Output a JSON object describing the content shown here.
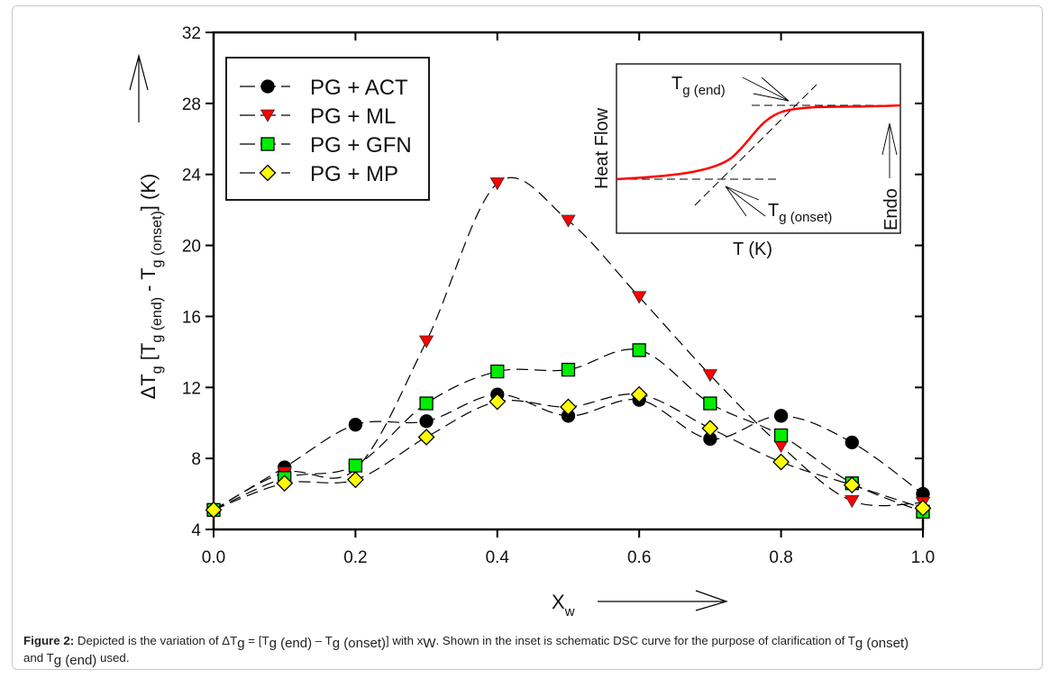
{
  "chart_data": {
    "type": "line",
    "title": "",
    "xlabel": "X",
    "xlabel_sub": "w",
    "ylabel_parts": [
      "ΔT",
      "g",
      " [T",
      "g (end)",
      " - T",
      "g (onset)",
      "] (K)"
    ],
    "xlim": [
      0.0,
      1.0
    ],
    "ylim": [
      4,
      32
    ],
    "xticks": [
      0.0,
      0.2,
      0.4,
      0.6,
      0.8,
      1.0
    ],
    "xtick_labels": [
      "0.0",
      "0.2",
      "0.4",
      "0.6",
      "0.8",
      "1.0"
    ],
    "yticks": [
      4,
      8,
      12,
      16,
      20,
      24,
      28,
      32
    ],
    "ytick_labels": [
      "4",
      "8",
      "12",
      "16",
      "20",
      "24",
      "28",
      "32"
    ],
    "grid": false,
    "legend_position": "top-left",
    "x": [
      0.0,
      0.1,
      0.2,
      0.3,
      0.4,
      0.5,
      0.6,
      0.7,
      0.8,
      0.9,
      1.0
    ],
    "series": [
      {
        "name": "PG + ACT",
        "marker": "circle",
        "color": "#000000",
        "values": [
          5.1,
          7.5,
          9.9,
          10.1,
          11.6,
          10.4,
          11.3,
          9.1,
          10.4,
          8.9,
          6.0
        ]
      },
      {
        "name": "PG + ML",
        "marker": "triangle-down",
        "color": "#ff0000",
        "values": [
          5.1,
          7.2,
          7.4,
          14.6,
          23.5,
          21.4,
          17.1,
          12.7,
          8.7,
          5.6,
          5.5
        ]
      },
      {
        "name": "PG + GFN",
        "marker": "square",
        "color": "#00ee00",
        "values": [
          5.1,
          6.9,
          7.6,
          11.1,
          12.9,
          13.0,
          14.1,
          11.1,
          9.3,
          6.6,
          5.0
        ]
      },
      {
        "name": "PG + MP",
        "marker": "diamond",
        "color": "#ffff00",
        "values": [
          5.1,
          6.6,
          6.8,
          9.2,
          11.2,
          10.9,
          11.6,
          9.7,
          7.8,
          6.5,
          5.2
        ]
      }
    ],
    "inset": {
      "ylabel": "Heat Flow",
      "xlabel": "T (K)",
      "tg_end_label": "T",
      "tg_end_sub": "g (end)",
      "tg_onset_label": "T",
      "tg_onset_sub": "g (onset)",
      "endo_label": "Endo",
      "curve_color": "#ff0000"
    }
  },
  "caption": {
    "figure_label": "Figure 2:",
    "line1_a": " Depicted is the variation of ΔT",
    "g1": "g",
    "line1_b": " = [T",
    "g_end": "g (end)",
    "line1_c": " – T",
    "g_onset": "g (onset)",
    "line1_d": "] with x",
    "w": "W",
    "line1_e": ". Shown in the inset is schematic DSC curve for the purpose of clarification of T",
    "g_onset2": "g (onset)",
    "line2_a": "and T",
    "g_end2": "g (end)",
    "line2_b": " used."
  }
}
